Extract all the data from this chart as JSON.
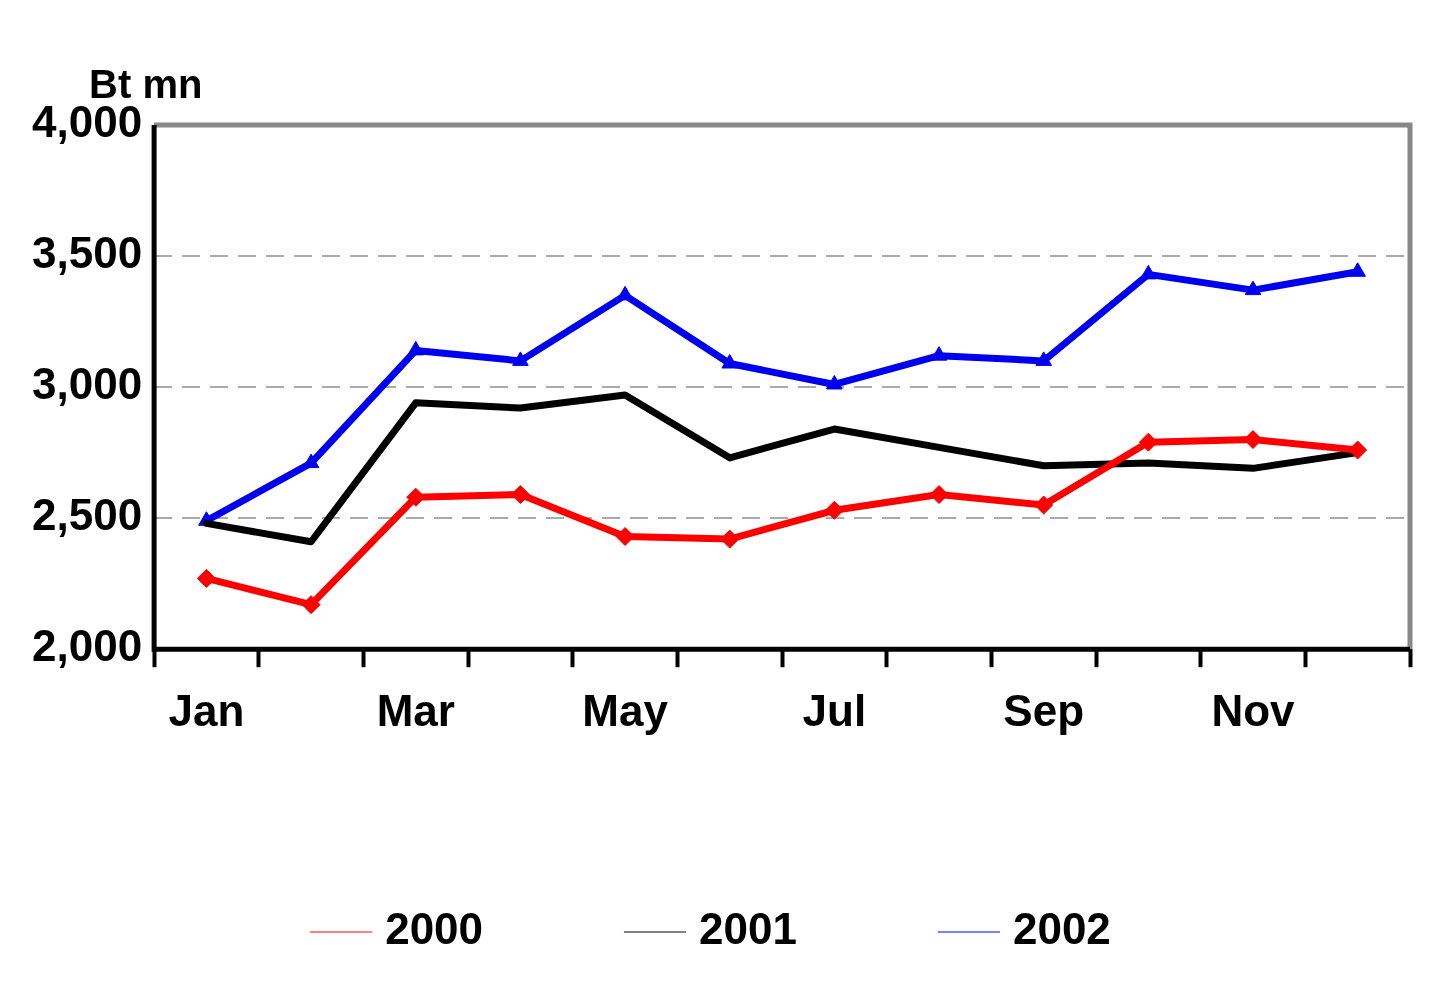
{
  "chart_data": {
    "type": "line",
    "ylabel": "Bt mn",
    "categories": [
      "Jan",
      null,
      "Mar",
      null,
      "May",
      null,
      "Jul",
      null,
      "Sep",
      null,
      "Nov",
      null
    ],
    "series": [
      {
        "name": "2000",
        "color": "#ff0000",
        "marker": "diamond",
        "values": [
          2270,
          2170,
          2580,
          2590,
          2430,
          2420,
          2530,
          2590,
          2550,
          2790,
          2800,
          2760
        ]
      },
      {
        "name": "2001",
        "color": "#000000",
        "marker": "none",
        "values": [
          2480,
          2410,
          2940,
          2920,
          2970,
          2730,
          2840,
          2770,
          2700,
          2710,
          2690,
          2750
        ]
      },
      {
        "name": "2002",
        "color": "#0000ee",
        "marker": "triangle",
        "values": [
          2490,
          2710,
          3140,
          3100,
          3350,
          3090,
          3010,
          3120,
          3100,
          3430,
          3370,
          3440
        ]
      }
    ],
    "ylim": [
      2000,
      4000
    ],
    "yticks": [
      {
        "value": 2000,
        "label": "2,000"
      },
      {
        "value": 2500,
        "label": "2,500"
      },
      {
        "value": 3000,
        "label": "3,000"
      },
      {
        "value": 3500,
        "label": "3,500"
      },
      {
        "value": 4000,
        "label": "4,000"
      }
    ],
    "grid": "y",
    "legend": "bottom",
    "line_style": "solid"
  }
}
